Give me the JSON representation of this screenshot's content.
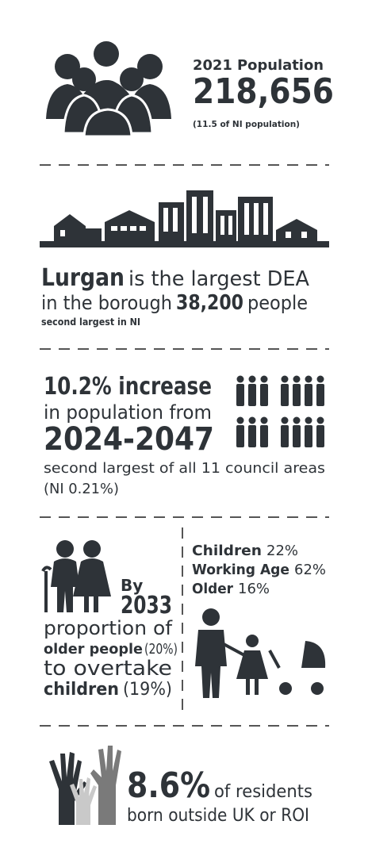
{
  "population": {
    "label": "2021 Population",
    "value": "218,656",
    "note": "(11.5 of NI population)"
  },
  "dea": {
    "name": "Lurgan",
    "line1": "is the largest DEA",
    "line2": "in the borough",
    "figure": "38,200",
    "unit": "people",
    "note": "second largest in NI"
  },
  "growth": {
    "headline": "10.2% increase",
    "line2": "in population from",
    "period": "2024-2047",
    "note": "second largest of all 11 council areas",
    "ni": "(NI 0.21%)"
  },
  "ageing": {
    "by": "By",
    "year": "2033",
    "line1": "proportion of",
    "older": "older people",
    "older_pct": "(20%)",
    "line3": "to overtake",
    "children": "children",
    "children_pct": "(19%)"
  },
  "age_groups": [
    {
      "label": "Children",
      "value": "22%"
    },
    {
      "label": "Working Age",
      "value": "62%"
    },
    {
      "label": "Older",
      "value": "16%"
    }
  ],
  "born_outside": {
    "value": "8.6%",
    "line1": "of residents",
    "line2": "born outside UK or ROI"
  }
}
